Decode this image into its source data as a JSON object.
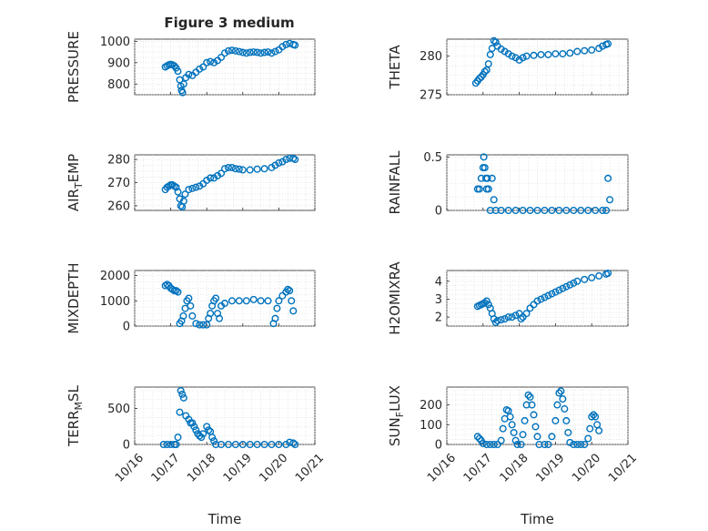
{
  "figure": {
    "title": "Figure 3 medium"
  },
  "chart_data": [
    {
      "name": "pressure",
      "type": "scatter",
      "ylabel": "PRESSURE",
      "sub": null,
      "ylim": [
        750,
        1010
      ],
      "yticks": [
        800,
        900,
        1000
      ],
      "xlim": [
        0,
        5
      ],
      "xticks": [],
      "xlabel": "",
      "points": [
        [
          0.85,
          880
        ],
        [
          0.9,
          885
        ],
        [
          0.95,
          890
        ],
        [
          1.0,
          892
        ],
        [
          1.05,
          890
        ],
        [
          1.1,
          885
        ],
        [
          1.15,
          875
        ],
        [
          1.2,
          860
        ],
        [
          1.25,
          820
        ],
        [
          1.28,
          790
        ],
        [
          1.3,
          770
        ],
        [
          1.33,
          760
        ],
        [
          1.36,
          800
        ],
        [
          1.42,
          830
        ],
        [
          1.5,
          845
        ],
        [
          1.6,
          840
        ],
        [
          1.7,
          855
        ],
        [
          1.8,
          870
        ],
        [
          1.9,
          880
        ],
        [
          2.0,
          900
        ],
        [
          2.1,
          905
        ],
        [
          2.2,
          900
        ],
        [
          2.3,
          910
        ],
        [
          2.4,
          925
        ],
        [
          2.5,
          945
        ],
        [
          2.6,
          955
        ],
        [
          2.7,
          958
        ],
        [
          2.8,
          955
        ],
        [
          2.9,
          952
        ],
        [
          3.0,
          948
        ],
        [
          3.1,
          945
        ],
        [
          3.2,
          948
        ],
        [
          3.3,
          950
        ],
        [
          3.4,
          948
        ],
        [
          3.5,
          945
        ],
        [
          3.6,
          948
        ],
        [
          3.7,
          950
        ],
        [
          3.8,
          945
        ],
        [
          3.9,
          952
        ],
        [
          4.0,
          960
        ],
        [
          4.1,
          975
        ],
        [
          4.2,
          985
        ],
        [
          4.3,
          990
        ],
        [
          4.4,
          985
        ],
        [
          4.45,
          982
        ]
      ]
    },
    {
      "name": "theta",
      "type": "scatter",
      "ylabel": "THETA",
      "sub": null,
      "ylim": [
        275,
        282.2
      ],
      "yticks": [
        275,
        280
      ],
      "xlim": [
        0,
        5
      ],
      "xticks": [],
      "xlabel": "",
      "points": [
        [
          0.8,
          276.5
        ],
        [
          0.85,
          276.8
        ],
        [
          0.9,
          277.1
        ],
        [
          0.95,
          277.3
        ],
        [
          1.0,
          277.6
        ],
        [
          1.05,
          278.0
        ],
        [
          1.1,
          278.2
        ],
        [
          1.15,
          279.0
        ],
        [
          1.2,
          280.2
        ],
        [
          1.25,
          281.0
        ],
        [
          1.3,
          282.0
        ],
        [
          1.35,
          281.8
        ],
        [
          1.4,
          281.3
        ],
        [
          1.5,
          280.9
        ],
        [
          1.6,
          280.6
        ],
        [
          1.7,
          280.3
        ],
        [
          1.8,
          280.0
        ],
        [
          1.9,
          279.8
        ],
        [
          2.0,
          279.5
        ],
        [
          2.1,
          279.8
        ],
        [
          2.2,
          280.0
        ],
        [
          2.4,
          280.1
        ],
        [
          2.6,
          280.2
        ],
        [
          2.8,
          280.2
        ],
        [
          3.0,
          280.3
        ],
        [
          3.2,
          280.3
        ],
        [
          3.4,
          280.4
        ],
        [
          3.6,
          280.6
        ],
        [
          3.8,
          280.7
        ],
        [
          4.0,
          280.8
        ],
        [
          4.2,
          281.0
        ],
        [
          4.3,
          281.3
        ],
        [
          4.4,
          281.5
        ],
        [
          4.45,
          281.6
        ]
      ]
    },
    {
      "name": "air-temp",
      "type": "scatter",
      "ylabel": "AIR",
      "sub": "TEMP",
      "ylim": [
        258,
        282
      ],
      "yticks": [
        260,
        270,
        280
      ],
      "xlim": [
        0,
        5
      ],
      "xticks": [],
      "xlabel": "",
      "points": [
        [
          0.85,
          267
        ],
        [
          0.9,
          268
        ],
        [
          0.95,
          268.5
        ],
        [
          1.0,
          269
        ],
        [
          1.05,
          269
        ],
        [
          1.1,
          268.5
        ],
        [
          1.15,
          268
        ],
        [
          1.2,
          266
        ],
        [
          1.25,
          263
        ],
        [
          1.28,
          260
        ],
        [
          1.32,
          259.5
        ],
        [
          1.36,
          262
        ],
        [
          1.4,
          265
        ],
        [
          1.5,
          267
        ],
        [
          1.6,
          267.5
        ],
        [
          1.7,
          268
        ],
        [
          1.8,
          268.5
        ],
        [
          1.9,
          269.5
        ],
        [
          2.0,
          271
        ],
        [
          2.1,
          272
        ],
        [
          2.2,
          272
        ],
        [
          2.3,
          273
        ],
        [
          2.4,
          274
        ],
        [
          2.5,
          276
        ],
        [
          2.6,
          276.5
        ],
        [
          2.7,
          276.5
        ],
        [
          2.8,
          276
        ],
        [
          2.9,
          275.8
        ],
        [
          3.0,
          275.5
        ],
        [
          3.2,
          275.5
        ],
        [
          3.4,
          275.8
        ],
        [
          3.6,
          276
        ],
        [
          3.8,
          276.5
        ],
        [
          3.9,
          277.5
        ],
        [
          4.0,
          278.5
        ],
        [
          4.1,
          279
        ],
        [
          4.2,
          280
        ],
        [
          4.3,
          280.5
        ],
        [
          4.4,
          280.5
        ],
        [
          4.45,
          280
        ]
      ]
    },
    {
      "name": "rainfall",
      "type": "scatter",
      "ylabel": "RAINFALL",
      "sub": null,
      "ylim": [
        0,
        0.52
      ],
      "yticks": [
        0,
        0.5
      ],
      "xlim": [
        0,
        5
      ],
      "xticks": [],
      "xlabel": "",
      "points": [
        [
          0.85,
          0.2
        ],
        [
          0.9,
          0.2
        ],
        [
          0.95,
          0.3
        ],
        [
          1.0,
          0.4
        ],
        [
          1.02,
          0.5
        ],
        [
          1.05,
          0.4
        ],
        [
          1.08,
          0.3
        ],
        [
          1.1,
          0.2
        ],
        [
          1.12,
          0.3
        ],
        [
          1.15,
          0.2
        ],
        [
          1.2,
          0.0
        ],
        [
          1.25,
          0.3
        ],
        [
          1.3,
          0.1
        ],
        [
          1.35,
          0
        ],
        [
          1.5,
          0
        ],
        [
          1.7,
          0
        ],
        [
          1.9,
          0
        ],
        [
          2.1,
          0
        ],
        [
          2.3,
          0
        ],
        [
          2.5,
          0
        ],
        [
          2.7,
          0
        ],
        [
          2.9,
          0
        ],
        [
          3.1,
          0
        ],
        [
          3.3,
          0
        ],
        [
          3.5,
          0
        ],
        [
          3.7,
          0
        ],
        [
          3.9,
          0
        ],
        [
          4.1,
          0
        ],
        [
          4.3,
          0
        ],
        [
          4.4,
          0
        ],
        [
          4.45,
          0.3
        ],
        [
          4.5,
          0.1
        ]
      ]
    },
    {
      "name": "mixdepth",
      "type": "scatter",
      "ylabel": "MIXDEPTH",
      "sub": null,
      "ylim": [
        0,
        2200
      ],
      "yticks": [
        0,
        1000,
        2000
      ],
      "xlim": [
        0,
        5
      ],
      "xticks": [],
      "xlabel": "",
      "points": [
        [
          0.85,
          1600
        ],
        [
          0.9,
          1650
        ],
        [
          0.95,
          1600
        ],
        [
          1.0,
          1500
        ],
        [
          1.05,
          1450
        ],
        [
          1.1,
          1400
        ],
        [
          1.15,
          1400
        ],
        [
          1.2,
          1350
        ],
        [
          1.25,
          100
        ],
        [
          1.3,
          200
        ],
        [
          1.35,
          400
        ],
        [
          1.4,
          700
        ],
        [
          1.45,
          1000
        ],
        [
          1.5,
          1100
        ],
        [
          1.55,
          800
        ],
        [
          1.6,
          400
        ],
        [
          1.7,
          100
        ],
        [
          1.8,
          50
        ],
        [
          1.9,
          50
        ],
        [
          2.0,
          50
        ],
        [
          2.05,
          300
        ],
        [
          2.1,
          500
        ],
        [
          2.15,
          800
        ],
        [
          2.2,
          1000
        ],
        [
          2.25,
          1100
        ],
        [
          2.3,
          500
        ],
        [
          2.35,
          300
        ],
        [
          2.4,
          800
        ],
        [
          2.5,
          900
        ],
        [
          2.7,
          1000
        ],
        [
          2.9,
          1000
        ],
        [
          3.1,
          1000
        ],
        [
          3.3,
          1050
        ],
        [
          3.5,
          1000
        ],
        [
          3.7,
          1000
        ],
        [
          3.85,
          100
        ],
        [
          3.9,
          300
        ],
        [
          3.95,
          700
        ],
        [
          4.0,
          1000
        ],
        [
          4.1,
          1200
        ],
        [
          4.2,
          1350
        ],
        [
          4.25,
          1450
        ],
        [
          4.3,
          1400
        ],
        [
          4.35,
          1000
        ],
        [
          4.4,
          600
        ]
      ]
    },
    {
      "name": "h2omixra",
      "type": "scatter",
      "ylabel": "H2OMIXRA",
      "sub": null,
      "ylim": [
        1.5,
        4.6
      ],
      "yticks": [
        2,
        3,
        4
      ],
      "xlim": [
        0,
        5
      ],
      "xticks": [],
      "xlabel": "",
      "points": [
        [
          0.85,
          2.6
        ],
        [
          0.9,
          2.65
        ],
        [
          0.95,
          2.7
        ],
        [
          1.0,
          2.75
        ],
        [
          1.05,
          2.8
        ],
        [
          1.1,
          2.9
        ],
        [
          1.15,
          2.7
        ],
        [
          1.2,
          2.5
        ],
        [
          1.25,
          2.2
        ],
        [
          1.3,
          1.9
        ],
        [
          1.35,
          1.7
        ],
        [
          1.4,
          1.8
        ],
        [
          1.5,
          1.85
        ],
        [
          1.6,
          1.9
        ],
        [
          1.7,
          2.0
        ],
        [
          1.8,
          2.0
        ],
        [
          1.9,
          2.1
        ],
        [
          2.0,
          2.2
        ],
        [
          2.05,
          1.9
        ],
        [
          2.1,
          2.0
        ],
        [
          2.2,
          2.2
        ],
        [
          2.3,
          2.5
        ],
        [
          2.4,
          2.7
        ],
        [
          2.5,
          2.9
        ],
        [
          2.6,
          3.0
        ],
        [
          2.7,
          3.1
        ],
        [
          2.8,
          3.2
        ],
        [
          2.9,
          3.3
        ],
        [
          3.0,
          3.4
        ],
        [
          3.1,
          3.5
        ],
        [
          3.2,
          3.6
        ],
        [
          3.3,
          3.7
        ],
        [
          3.4,
          3.8
        ],
        [
          3.5,
          3.9
        ],
        [
          3.6,
          4.0
        ],
        [
          3.8,
          4.1
        ],
        [
          4.0,
          4.2
        ],
        [
          4.2,
          4.3
        ],
        [
          4.4,
          4.4
        ],
        [
          4.45,
          4.45
        ]
      ]
    },
    {
      "name": "terr-msl",
      "type": "scatter",
      "ylabel": "TERR",
      "sub": "MSL",
      "ylim": [
        0,
        800
      ],
      "yticks": [
        0,
        500
      ],
      "xlim": [
        0,
        5
      ],
      "xticks": [
        "10/16",
        "10/17",
        "10/18",
        "10/19",
        "10/20",
        "10/21"
      ],
      "xlabel": "Time",
      "points": [
        [
          0.8,
          0
        ],
        [
          0.9,
          0
        ],
        [
          1.0,
          0
        ],
        [
          1.1,
          0
        ],
        [
          1.15,
          0
        ],
        [
          1.2,
          100
        ],
        [
          1.25,
          450
        ],
        [
          1.28,
          750
        ],
        [
          1.32,
          700
        ],
        [
          1.36,
          650
        ],
        [
          1.42,
          400
        ],
        [
          1.5,
          350
        ],
        [
          1.55,
          300
        ],
        [
          1.6,
          300
        ],
        [
          1.65,
          250
        ],
        [
          1.7,
          200
        ],
        [
          1.75,
          150
        ],
        [
          1.8,
          120
        ],
        [
          1.85,
          100
        ],
        [
          1.9,
          150
        ],
        [
          2.0,
          250
        ],
        [
          2.05,
          200
        ],
        [
          2.1,
          180
        ],
        [
          2.15,
          100
        ],
        [
          2.2,
          50
        ],
        [
          2.25,
          0
        ],
        [
          2.4,
          0
        ],
        [
          2.6,
          0
        ],
        [
          2.8,
          0
        ],
        [
          3.0,
          0
        ],
        [
          3.2,
          0
        ],
        [
          3.4,
          0
        ],
        [
          3.6,
          0
        ],
        [
          3.8,
          0
        ],
        [
          4.0,
          0
        ],
        [
          4.2,
          0
        ],
        [
          4.3,
          30
        ],
        [
          4.4,
          20
        ],
        [
          4.45,
          0
        ]
      ]
    },
    {
      "name": "sun-flux",
      "type": "scatter",
      "ylabel": "SUN",
      "sub": "FLUX",
      "ylim": [
        0,
        290
      ],
      "yticks": [
        0,
        100,
        200
      ],
      "xlim": [
        0,
        5
      ],
      "xticks": [
        "10/16",
        "10/17",
        "10/18",
        "10/19",
        "10/20",
        "10/21"
      ],
      "xlabel": "Time",
      "points": [
        [
          0.85,
          40
        ],
        [
          0.9,
          30
        ],
        [
          0.95,
          20
        ],
        [
          1.0,
          5
        ],
        [
          1.1,
          0
        ],
        [
          1.2,
          0
        ],
        [
          1.3,
          0
        ],
        [
          1.4,
          0
        ],
        [
          1.5,
          20
        ],
        [
          1.55,
          80
        ],
        [
          1.6,
          130
        ],
        [
          1.65,
          175
        ],
        [
          1.7,
          170
        ],
        [
          1.75,
          140
        ],
        [
          1.8,
          100
        ],
        [
          1.85,
          60
        ],
        [
          1.9,
          20
        ],
        [
          1.95,
          0
        ],
        [
          2.05,
          0
        ],
        [
          2.1,
          50
        ],
        [
          2.15,
          120
        ],
        [
          2.2,
          200
        ],
        [
          2.25,
          250
        ],
        [
          2.3,
          240
        ],
        [
          2.35,
          200
        ],
        [
          2.4,
          150
        ],
        [
          2.45,
          90
        ],
        [
          2.5,
          40
        ],
        [
          2.55,
          0
        ],
        [
          2.7,
          0
        ],
        [
          2.8,
          0
        ],
        [
          2.9,
          40
        ],
        [
          3.0,
          120
        ],
        [
          3.05,
          200
        ],
        [
          3.1,
          260
        ],
        [
          3.15,
          270
        ],
        [
          3.2,
          230
        ],
        [
          3.25,
          180
        ],
        [
          3.3,
          120
        ],
        [
          3.35,
          60
        ],
        [
          3.4,
          10
        ],
        [
          3.5,
          0
        ],
        [
          3.6,
          0
        ],
        [
          3.7,
          0
        ],
        [
          3.8,
          0
        ],
        [
          3.9,
          30
        ],
        [
          3.95,
          80
        ],
        [
          4.0,
          140
        ],
        [
          4.05,
          150
        ],
        [
          4.1,
          140
        ],
        [
          4.15,
          100
        ],
        [
          4.2,
          70
        ]
      ]
    }
  ]
}
